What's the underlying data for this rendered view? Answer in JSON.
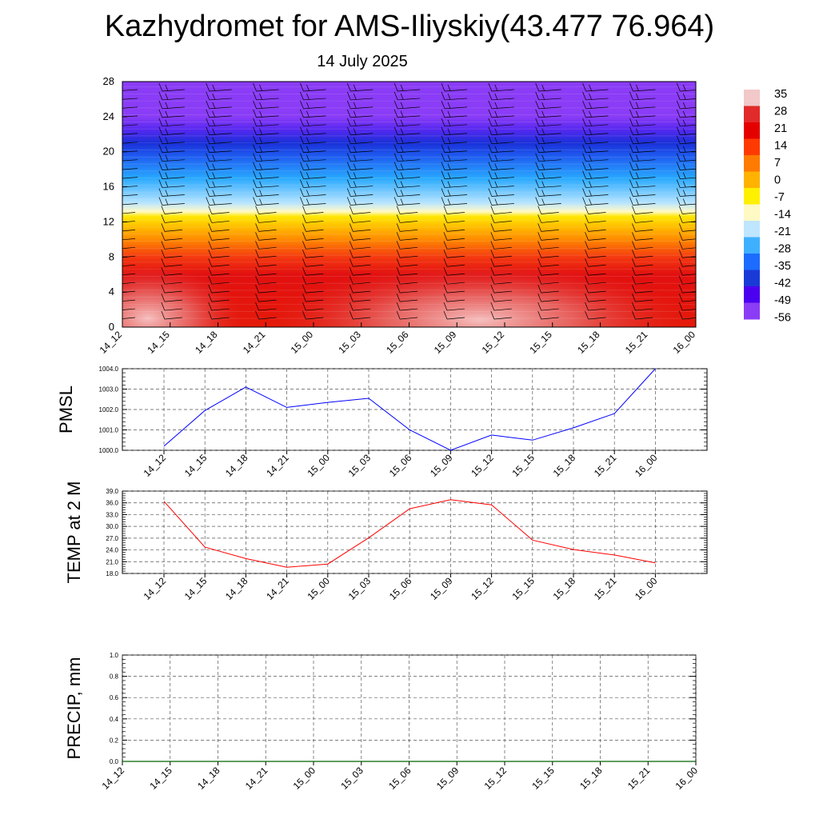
{
  "title": "Kazhydromet for AMS-Iliyskiy(43.477 76.964)",
  "date": "14 July 2025",
  "chart_data": [
    {
      "name": "vertical-cross-section",
      "type": "heatmap",
      "x_ticks": [
        "14_12",
        "14_15",
        "14_18",
        "14_21",
        "15_00",
        "15_03",
        "15_06",
        "15_09",
        "15_12",
        "15_15",
        "15_18",
        "15_21",
        "16_00"
      ],
      "y_ticks": [
        "0",
        "4",
        "8",
        "12",
        "16",
        "20",
        "24",
        "28"
      ],
      "ylim": [
        0,
        28
      ],
      "colorbar_labels": [
        "35",
        "28",
        "21",
        "14",
        "7",
        "0",
        "-7",
        "-14",
        "-21",
        "-28",
        "-35",
        "-42",
        "-49",
        "-56"
      ],
      "colorbar_colors": [
        "#f2c8c8",
        "#e22a2a",
        "#e50000",
        "#ff3a00",
        "#ff7a00",
        "#ffb200",
        "#fff000",
        "#fff9c4",
        "#bfe6ff",
        "#3fb0ff",
        "#1c6cff",
        "#1a3ad8",
        "#4b00f0",
        "#8b3df5"
      ],
      "vertical_profile": [
        {
          "z": 0,
          "color": "#e51a0a"
        },
        {
          "z": 6,
          "color": "#e21010"
        },
        {
          "z": 8,
          "color": "#f43a10"
        },
        {
          "z": 10,
          "color": "#ff8a00"
        },
        {
          "z": 12.6,
          "color": "#ffe600"
        },
        {
          "z": 13.2,
          "color": "#fffac8"
        },
        {
          "z": 14.2,
          "color": "#b6e4ff"
        },
        {
          "z": 17,
          "color": "#28a8ff"
        },
        {
          "z": 19.5,
          "color": "#1f5cf0"
        },
        {
          "z": 21,
          "color": "#1a30d8"
        },
        {
          "z": 22.5,
          "color": "#5528f0"
        },
        {
          "z": 24,
          "color": "#8a3cf6"
        },
        {
          "z": 28,
          "color": "#8a3cf6"
        }
      ]
    },
    {
      "name": "pmsl",
      "type": "line",
      "ylabel": "PMSL",
      "x": [
        "14_12",
        "14_15",
        "14_18",
        "14_21",
        "15_00",
        "15_03",
        "15_06",
        "15_09",
        "15_12",
        "15_15",
        "15_18",
        "15_21",
        "16_00"
      ],
      "y_ticks": [
        "1000.0",
        "1001.0",
        "1002.0",
        "1003.0",
        "1004.0"
      ],
      "ylim": [
        1000,
        1004
      ],
      "values": [
        1000.2,
        1001.95,
        1003.1,
        1002.1,
        1002.35,
        1002.55,
        1001.0,
        1000.0,
        1000.75,
        1000.5,
        1001.1,
        1001.8,
        1004.0
      ],
      "color": "#0000ff"
    },
    {
      "name": "temp2m",
      "type": "line",
      "ylabel": "TEMP at 2 M",
      "x": [
        "14_12",
        "14_15",
        "14_18",
        "14_21",
        "15_00",
        "15_03",
        "15_06",
        "15_09",
        "15_12",
        "15_15",
        "15_18",
        "15_21",
        "16_00"
      ],
      "y_ticks": [
        "18.0",
        "21.0",
        "24.0",
        "27.0",
        "30.0",
        "33.0",
        "36.0",
        "39.0"
      ],
      "ylim": [
        18,
        39
      ],
      "values": [
        36.4,
        24.7,
        21.8,
        19.6,
        20.4,
        27.1,
        34.5,
        36.8,
        35.5,
        26.5,
        24.1,
        22.7,
        20.7
      ],
      "color": "#ff0000"
    },
    {
      "name": "precip",
      "type": "line",
      "ylabel": "PRECIP, mm",
      "x": [
        "14_12",
        "14_15",
        "14_18",
        "14_21",
        "15_00",
        "15_03",
        "15_06",
        "15_09",
        "15_12",
        "15_15",
        "15_18",
        "15_21",
        "16_00"
      ],
      "y_ticks": [
        "0.0",
        "0.2",
        "0.4",
        "0.6",
        "0.8",
        "1.0"
      ],
      "ylim": [
        0,
        1
      ],
      "values": [
        0,
        0,
        0,
        0,
        0,
        0,
        0,
        0,
        0,
        0,
        0,
        0,
        0
      ],
      "color": "#006400"
    }
  ]
}
